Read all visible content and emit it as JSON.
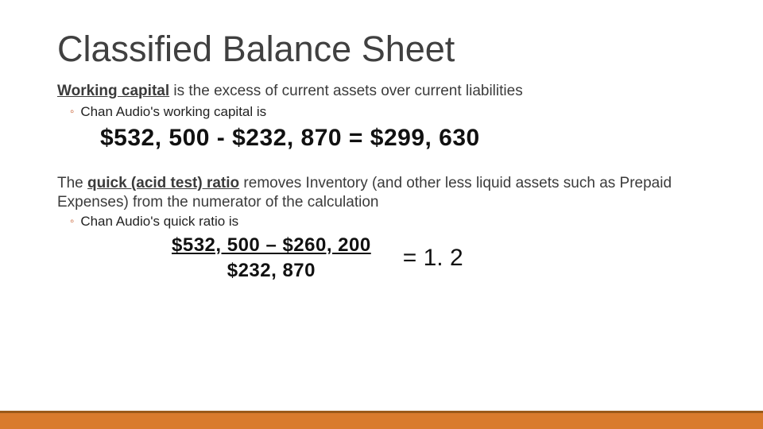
{
  "title": "Classified Balance Sheet",
  "working_capital": {
    "term": "Working capital",
    "definition_rest": " is the excess of current assets over current liabilities",
    "bullet_company": "Chan Audio's working capital is",
    "equation": "$532, 500 - $232, 870 = $299, 630"
  },
  "quick_ratio": {
    "line1_pre": "The ",
    "term": "quick (acid test)  ratio",
    "line1_post": " removes Inventory (and other less liquid assets such as Prepaid",
    "line2": "Expenses) from the numerator of the calculation",
    "bullet_company": "Chan Audio's quick ratio is",
    "numerator": "$532, 500 – $260, 200",
    "denominator": "$232, 870",
    "result": "= 1. 2"
  },
  "colors": {
    "title_color": "#404040",
    "body_color": "#3b3b3b",
    "bullet_color": "#c55a2b",
    "bar_orange": "#d97b2d",
    "bar_brown": "#9a5a1a",
    "background": "#ffffff"
  }
}
